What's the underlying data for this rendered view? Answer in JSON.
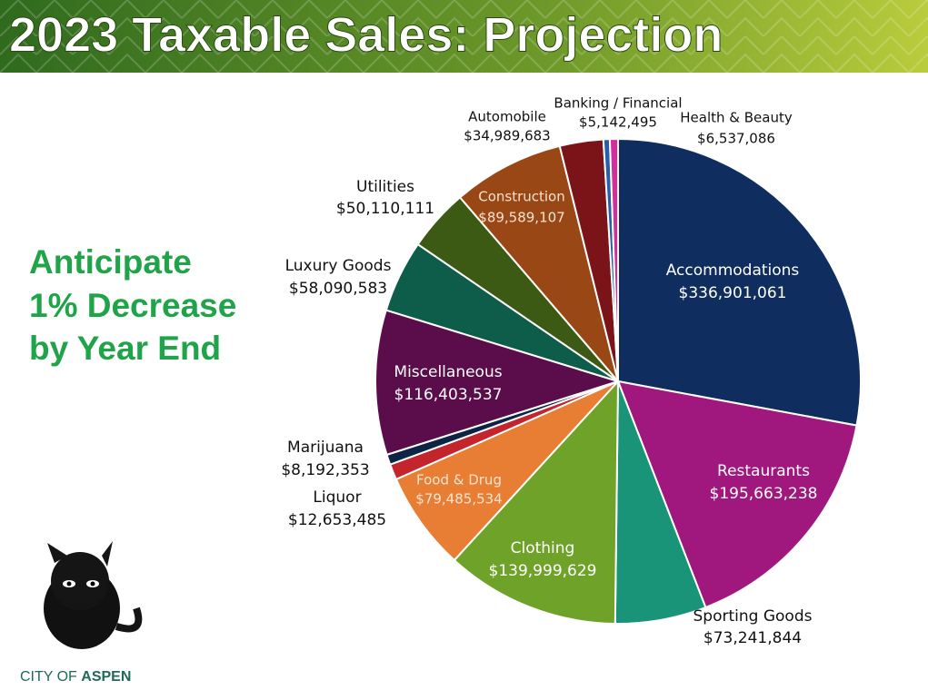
{
  "chart_data": {
    "type": "pie",
    "title": "2023 Taxable Sales: Projection",
    "annotation": [
      "Anticipate",
      "1% Decrease",
      "by Year End"
    ],
    "logo": [
      "CITY OF",
      "ASPEN"
    ],
    "categories": [
      "Accommodations",
      "Restaurants",
      "Sporting Goods",
      "Clothing",
      "Food & Drug",
      "Liquor",
      "Marijuana",
      "Miscellaneous",
      "Luxury Goods",
      "Utilities",
      "Construction",
      "Automobile",
      "Banking / Financial",
      "Health & Beauty"
    ],
    "values": [
      336901061,
      195663238,
      73241844,
      139999629,
      79485534,
      12653485,
      8192353,
      116403537,
      58090583,
      50110111,
      89589107,
      34989683,
      5142495,
      6537086
    ],
    "value_labels": [
      "$336,901,061",
      "$195,663,238",
      "$73,241,844",
      "$139,999,629",
      "$79,485,534",
      "$12,653,485",
      "$8,192,353",
      "$116,403,537",
      "$58,090,583",
      "$50,110,111",
      "$89,589,107",
      "$34,989,683",
      "$5,142,495",
      "$6,537,086"
    ],
    "colors": [
      "#0f2d5e",
      "#a0177e",
      "#1a9479",
      "#6fa229",
      "#e87e34",
      "#c4252c",
      "#0e2444",
      "#5b0d4b",
      "#0e5c4a",
      "#3d5a14",
      "#984715",
      "#7a1418",
      "#2b5ea8",
      "#d22f9d"
    ]
  }
}
